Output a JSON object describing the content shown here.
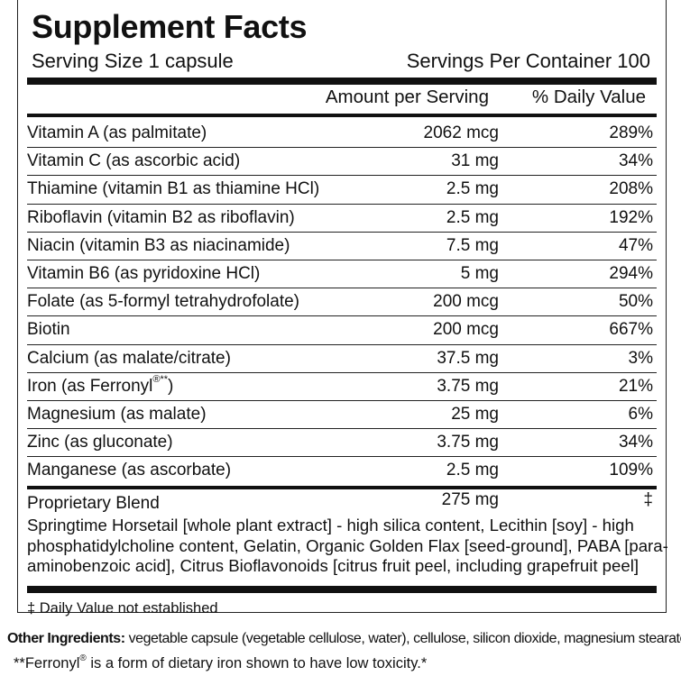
{
  "title": "Supplement Facts",
  "serving_size": "Serving Size 1 capsule",
  "servings_per_container": "Servings Per Container 100",
  "columns": {
    "amount": "Amount per Serving",
    "daily_value": "% Daily Value"
  },
  "rows": [
    {
      "name": "Vitamin A (as palmitate)",
      "amount": "2062 mcg",
      "dv": "289%"
    },
    {
      "name": "Vitamin C (as ascorbic acid)",
      "amount": "31 mg",
      "dv": "34%"
    },
    {
      "name": "Thiamine (vitamin B1 as thiamine HCl)",
      "amount": "2.5 mg",
      "dv": "208%"
    },
    {
      "name": "Riboflavin (vitamin B2 as riboflavin)",
      "amount": "2.5 mg",
      "dv": "192%"
    },
    {
      "name": "Niacin (vitamin B3 as niacinamide)",
      "amount": "7.5 mg",
      "dv": "47%"
    },
    {
      "name": "Vitamin B6 (as pyridoxine HCl)",
      "amount": "5 mg",
      "dv": "294%"
    },
    {
      "name": "Folate (as 5-formyl tetrahydrofolate)",
      "amount": "200 mcg",
      "dv": "50%"
    },
    {
      "name": "Biotin",
      "amount": "200 mcg",
      "dv": "667%"
    },
    {
      "name": "Calcium (as malate/citrate)",
      "amount": "37.5 mg",
      "dv": "3%"
    },
    {
      "name": "Iron (as Ferronyl",
      "name_sup": "®**",
      "name_end": ")",
      "amount": "3.75 mg",
      "dv": "21%"
    },
    {
      "name": "Magnesium (as malate)",
      "amount": "25 mg",
      "dv": "6%"
    },
    {
      "name": "Zinc (as gluconate)",
      "amount": "3.75 mg",
      "dv": "34%"
    },
    {
      "name": "Manganese (as ascorbate)",
      "amount": "2.5 mg",
      "dv": "109%"
    }
  ],
  "blend": {
    "name": "Proprietary Blend",
    "amount": "275 mg",
    "dv": "‡",
    "description": "Springtime Horsetail [whole plant extract] - high silica content, Lecithin [soy] - high phosphatidylcholine content, Gelatin, Organic Golden Flax [seed-ground], PABA [para-aminobenzoic acid], Citrus Bioflavonoids [citrus fruit peel, including grapefruit peel]"
  },
  "footnote": "‡ Daily Value not established",
  "other_ingredients": {
    "label": "Other Ingredients:",
    "text": " vegetable capsule (vegetable cellulose, water), cellulose, silicon dioxide, magnesium stearate"
  },
  "ferronyl_note": {
    "prefix": "**Ferronyl",
    "sup": "®",
    "text": " is a form of dietary iron shown to have low toxicity.*"
  }
}
